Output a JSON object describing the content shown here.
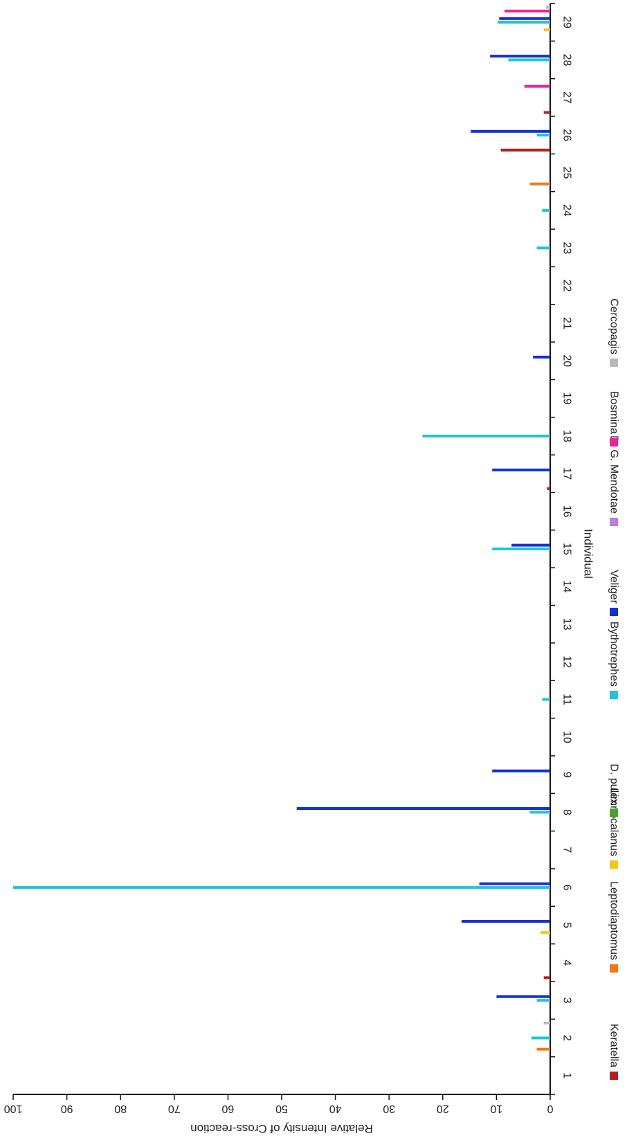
{
  "chart_data": {
    "type": "bar",
    "orientation": "rotated-90-ccw",
    "xlabel": "Individual",
    "ylabel": "Relative Intensity of Cross-reaction",
    "ylim": [
      0,
      100
    ],
    "yticks": [
      0,
      10,
      20,
      30,
      40,
      50,
      60,
      70,
      80,
      90,
      100
    ],
    "categories": [
      "1",
      "2",
      "3",
      "4",
      "5",
      "6",
      "7",
      "8",
      "9",
      "10",
      "11",
      "12",
      "13",
      "14",
      "15",
      "16",
      "17",
      "18",
      "19",
      "20",
      "21",
      "22",
      "23",
      "24",
      "25",
      "26",
      "27",
      "28",
      "29"
    ],
    "legend_position": "bottom",
    "series": [
      {
        "name": "Keratella",
        "color": "#b5201f",
        "values": [
          0,
          0,
          0,
          1.2,
          0,
          0,
          0,
          0,
          0,
          0,
          0,
          0,
          0,
          0,
          0,
          0,
          0.6,
          0,
          0,
          0,
          0,
          0,
          0,
          0,
          0,
          9.2,
          1.2,
          0,
          0
        ]
      },
      {
        "name": "Leptodiaptomus",
        "color": "#f07a1a",
        "values": [
          0,
          2.5,
          0,
          0,
          0,
          0,
          0,
          0,
          0,
          0,
          0,
          0,
          0,
          0,
          0,
          0,
          0,
          0,
          0,
          0,
          0,
          0,
          0,
          0,
          3.8,
          0,
          0,
          0,
          0
        ]
      },
      {
        "name": "Limnocalanus",
        "color": "#f5c518",
        "values": [
          0,
          0,
          0,
          0,
          1.8,
          0,
          0,
          0,
          0,
          0,
          0,
          0,
          0,
          0,
          0,
          0,
          0,
          0,
          0,
          0,
          0,
          0,
          0,
          0,
          0,
          0,
          0,
          0,
          1.2
        ]
      },
      {
        "name": "D. pulex",
        "color": "#4da02e",
        "values": [
          0,
          0,
          0,
          0,
          0,
          0,
          0,
          0,
          0,
          0,
          0,
          0,
          0,
          0,
          0,
          0,
          0,
          0,
          0,
          0,
          0,
          0,
          0,
          0,
          0,
          0,
          0,
          0,
          0
        ]
      },
      {
        "name": "Bythotrephes",
        "color": "#20c4d6",
        "values": [
          0,
          3.5,
          2.5,
          0,
          0,
          100,
          0,
          3.8,
          0,
          0,
          1.5,
          0,
          0,
          0,
          10.8,
          0,
          0,
          23.8,
          0,
          0,
          0,
          0,
          2.5,
          1.5,
          0,
          2.5,
          0,
          7.8,
          9.8
        ]
      },
      {
        "name": "Veliger",
        "color": "#1530d0",
        "values": [
          0,
          0,
          10,
          0,
          16.5,
          13.2,
          0,
          47.2,
          10.8,
          0,
          0,
          0,
          0,
          0,
          7.2,
          0,
          10.8,
          0,
          0,
          3.2,
          0,
          0,
          0,
          0,
          0,
          14.8,
          0,
          11.2,
          9.5
        ]
      },
      {
        "name": "D. G. Mendotae",
        "color": "#c07ae0",
        "values": [
          0,
          0,
          0,
          0,
          0,
          0,
          0,
          0,
          0,
          0,
          0,
          0,
          0,
          0,
          0,
          0,
          0,
          0,
          0,
          0,
          0,
          0,
          0,
          0,
          0,
          0,
          0,
          0,
          0
        ]
      },
      {
        "name": "Bosmina",
        "color": "#e8259a",
        "values": [
          0,
          0,
          0,
          0,
          0,
          0,
          0,
          0,
          0,
          0,
          0,
          0,
          0,
          0,
          0,
          0,
          0,
          0,
          0,
          0,
          0,
          0,
          0,
          0,
          0,
          0,
          4.8,
          0,
          8.5
        ]
      },
      {
        "name": "Cercopagis",
        "color": "#b8b8b8",
        "values": [
          0,
          1.2,
          0,
          0,
          0,
          0,
          0,
          0,
          0,
          0,
          0,
          0,
          0,
          0,
          0,
          0,
          0,
          0,
          0,
          0,
          0,
          0,
          0,
          0,
          0,
          0,
          0,
          0,
          0.8
        ]
      }
    ]
  }
}
